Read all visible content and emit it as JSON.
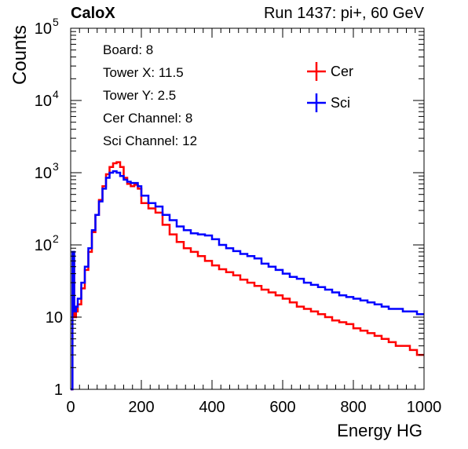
{
  "header": {
    "brand": "CaloX",
    "run": "Run 1437: pi+, 60 GeV"
  },
  "info_box": [
    "Board: 8",
    "Tower X: 11.5",
    "Tower Y: 2.5",
    "Cer Channel: 8",
    "Sci Channel: 12"
  ],
  "colors": {
    "cer": "#ff0000",
    "sci": "#0000ff",
    "axis": "#000000"
  },
  "chart_data": {
    "type": "line",
    "title": "",
    "xlabel": "Energy HG",
    "ylabel": "Counts",
    "xlim": [
      0,
      1000
    ],
    "ylim": [
      1,
      100000
    ],
    "yscale": "log",
    "grid": false,
    "legend_position": "top-right",
    "x_ticks": [
      "0",
      "200",
      "400",
      "600",
      "800",
      "1000"
    ],
    "y_ticks": [
      {
        "base": "1",
        "exp": ""
      },
      {
        "base": "10",
        "exp": ""
      },
      {
        "base": "10",
        "exp": "2"
      },
      {
        "base": "10",
        "exp": "3"
      },
      {
        "base": "10",
        "exp": "4"
      },
      {
        "base": "10",
        "exp": "5"
      }
    ],
    "x": [
      0,
      5,
      10,
      15,
      20,
      30,
      40,
      50,
      60,
      70,
      80,
      90,
      100,
      110,
      120,
      130,
      140,
      150,
      160,
      170,
      180,
      190,
      200,
      220,
      240,
      260,
      280,
      300,
      320,
      340,
      360,
      380,
      400,
      420,
      440,
      460,
      480,
      500,
      520,
      540,
      560,
      580,
      600,
      620,
      640,
      660,
      680,
      700,
      720,
      740,
      760,
      780,
      800,
      820,
      840,
      860,
      880,
      900,
      920,
      940,
      960,
      980,
      1000
    ],
    "series": [
      {
        "name": "Cer",
        "values": [
          1,
          60,
          10,
          12,
          15,
          25,
          45,
          80,
          150,
          260,
          420,
          650,
          950,
          1200,
          1350,
          1400,
          1200,
          850,
          700,
          650,
          680,
          600,
          380,
          320,
          280,
          190,
          140,
          110,
          90,
          80,
          70,
          60,
          52,
          46,
          42,
          38,
          33,
          30,
          27,
          24,
          22,
          20,
          18,
          16,
          14,
          13,
          12,
          11,
          10,
          9,
          8.5,
          8,
          7,
          6.5,
          6,
          5.5,
          5,
          4.5,
          4,
          4,
          3.5,
          3,
          3
        ]
      },
      {
        "name": "Sci",
        "values": [
          1,
          80,
          12,
          14,
          18,
          30,
          50,
          90,
          160,
          260,
          400,
          600,
          850,
          1000,
          1050,
          1000,
          900,
          800,
          750,
          720,
          720,
          650,
          480,
          380,
          340,
          260,
          220,
          180,
          160,
          145,
          140,
          135,
          120,
          100,
          90,
          82,
          75,
          70,
          65,
          55,
          50,
          45,
          40,
          36,
          34,
          30,
          28,
          26,
          24,
          22,
          20,
          19,
          18,
          17,
          16,
          15,
          14,
          13,
          13,
          12,
          12,
          11,
          11
        ]
      }
    ]
  }
}
